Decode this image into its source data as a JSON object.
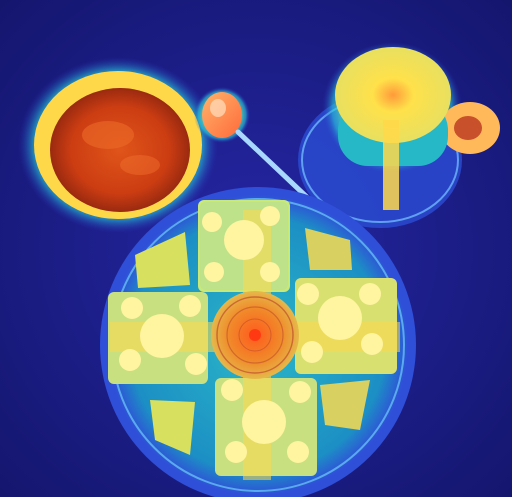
{
  "image": {
    "kind": "photo-with-heatmap-overlay",
    "palette": {
      "background": "#1c1f8a",
      "heat_low": "#2a3cc8",
      "heat_mid": "#2fd0d0",
      "heat_high": "#ffd84a",
      "heat_peak": "#ff5a1e",
      "soup": "#d94a12"
    },
    "objects": [
      {
        "name": "bowl-of-soup"
      },
      {
        "name": "spoon"
      },
      {
        "name": "cup-and-saucer"
      },
      {
        "name": "round-plate"
      },
      {
        "name": "open-faced-sandwiches"
      },
      {
        "name": "center-fruit"
      },
      {
        "name": "pastry-wedges"
      }
    ]
  }
}
